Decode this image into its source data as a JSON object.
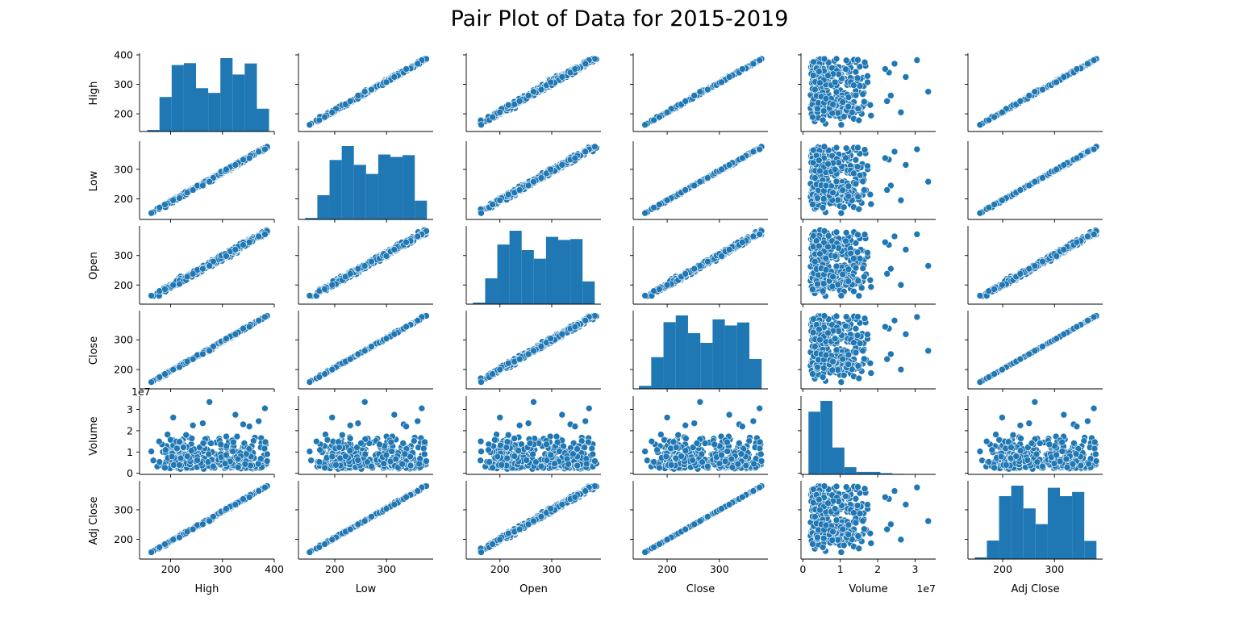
{
  "title": "Pair Plot of Data for 2015-2019",
  "chart_data": {
    "type": "scatter",
    "plot_kind": "pairplot",
    "variables": [
      "High",
      "Low",
      "Open",
      "Close",
      "Volume",
      "Adj Close"
    ],
    "diagonal": "histogram",
    "color": "#1f77b4",
    "grid": false,
    "legend": "none",
    "axes": {
      "High": {
        "lim": [
          140,
          400
        ],
        "ticks": [
          200,
          300,
          400
        ],
        "tick_labels": [
          "200",
          "300",
          "400"
        ]
      },
      "Low": {
        "lim": [
          130,
          390
        ],
        "ticks": [
          200,
          300
        ],
        "tick_labels": [
          "200",
          "300"
        ]
      },
      "Open": {
        "lim": [
          135,
          395
        ],
        "ticks": [
          200,
          300,
          400
        ],
        "tick_labels": [
          "200",
          "300",
          "400"
        ]
      },
      "Close": {
        "lim": [
          135,
          393
        ],
        "ticks": [
          200,
          300,
          400
        ],
        "tick_labels": [
          "200",
          "300",
          "400"
        ]
      },
      "Volume": {
        "lim": [
          -500000,
          35500000
        ],
        "ticks": [
          0,
          10000000,
          20000000,
          30000000
        ],
        "tick_labels": [
          "0",
          "1",
          "2",
          "3"
        ],
        "offset_label": "1e7"
      },
      "Adj Close": {
        "lim": [
          133,
          393
        ],
        "ticks": [
          200,
          300,
          400
        ],
        "tick_labels": [
          "200",
          "300",
          "400"
        ]
      }
    },
    "histograms": {
      "High": {
        "bins": [
          155,
          178.5,
          202,
          225.5,
          249,
          272.5,
          296,
          319.5,
          343,
          366.5,
          390
        ],
        "counts": [
          5,
          109,
          210,
          216,
          137,
          122,
          232,
          180,
          215,
          72
        ]
      },
      "Low": {
        "bins": [
          143,
          166.5,
          190,
          213.5,
          237,
          260.5,
          284,
          307.5,
          331,
          354.5,
          378
        ],
        "counts": [
          5,
          80,
          196,
          242,
          180,
          150,
          214,
          206,
          212,
          62
        ]
      },
      "Open": {
        "bins": [
          148,
          171.5,
          195,
          218.5,
          242,
          265.5,
          289,
          312.5,
          336,
          359.5,
          383
        ],
        "counts": [
          5,
          84,
          194,
          239,
          176,
          148,
          219,
          209,
          212,
          74
        ]
      },
      "Close": {
        "bins": [
          146,
          169.5,
          193,
          216.5,
          240,
          263.5,
          287,
          310.5,
          334,
          357.5,
          381
        ],
        "counts": [
          10,
          104,
          219,
          241,
          183,
          151,
          228,
          208,
          218,
          98
        ]
      },
      "Volume": {
        "bins": [
          1500000,
          4700000,
          7900000,
          11100000,
          14300000,
          17500000,
          20700000,
          23900000,
          27100000,
          30300000,
          33500000
        ],
        "counts": [
          350,
          410,
          150,
          40,
          14,
          14,
          7,
          3,
          1,
          2
        ]
      },
      "Adj Close": {
        "bins": [
          146,
          169.5,
          193,
          216.5,
          240,
          263.5,
          287,
          310.5,
          334,
          357.5,
          381
        ],
        "counts": [
          5,
          53,
          180,
          210,
          145,
          100,
          204,
          180,
          192,
          52
        ]
      }
    },
    "volume_outliers_x1e7": [
      {
        "v": 3.35,
        "low": 258,
        "high": 275,
        "open": 265,
        "close": 263
      },
      {
        "v": 3.05,
        "low": 368,
        "high": 382,
        "open": 372,
        "close": 377
      },
      {
        "v": 2.75,
        "low": 315,
        "high": 325,
        "open": 320,
        "close": 319
      },
      {
        "v": 2.62,
        "low": 195,
        "high": 205,
        "open": 200,
        "close": 200
      },
      {
        "v": 2.45,
        "low": 360,
        "high": 370,
        "open": 365,
        "close": 365
      },
      {
        "v": 2.35,
        "low": 245,
        "high": 262,
        "open": 255,
        "close": 252
      },
      {
        "v": 2.3,
        "low": 333,
        "high": 340,
        "open": 336,
        "close": 338
      },
      {
        "v": 2.25,
        "low": 230,
        "high": 243,
        "open": 238,
        "close": 235
      },
      {
        "v": 2.2,
        "low": 338,
        "high": 352,
        "open": 345,
        "close": 344
      }
    ]
  }
}
